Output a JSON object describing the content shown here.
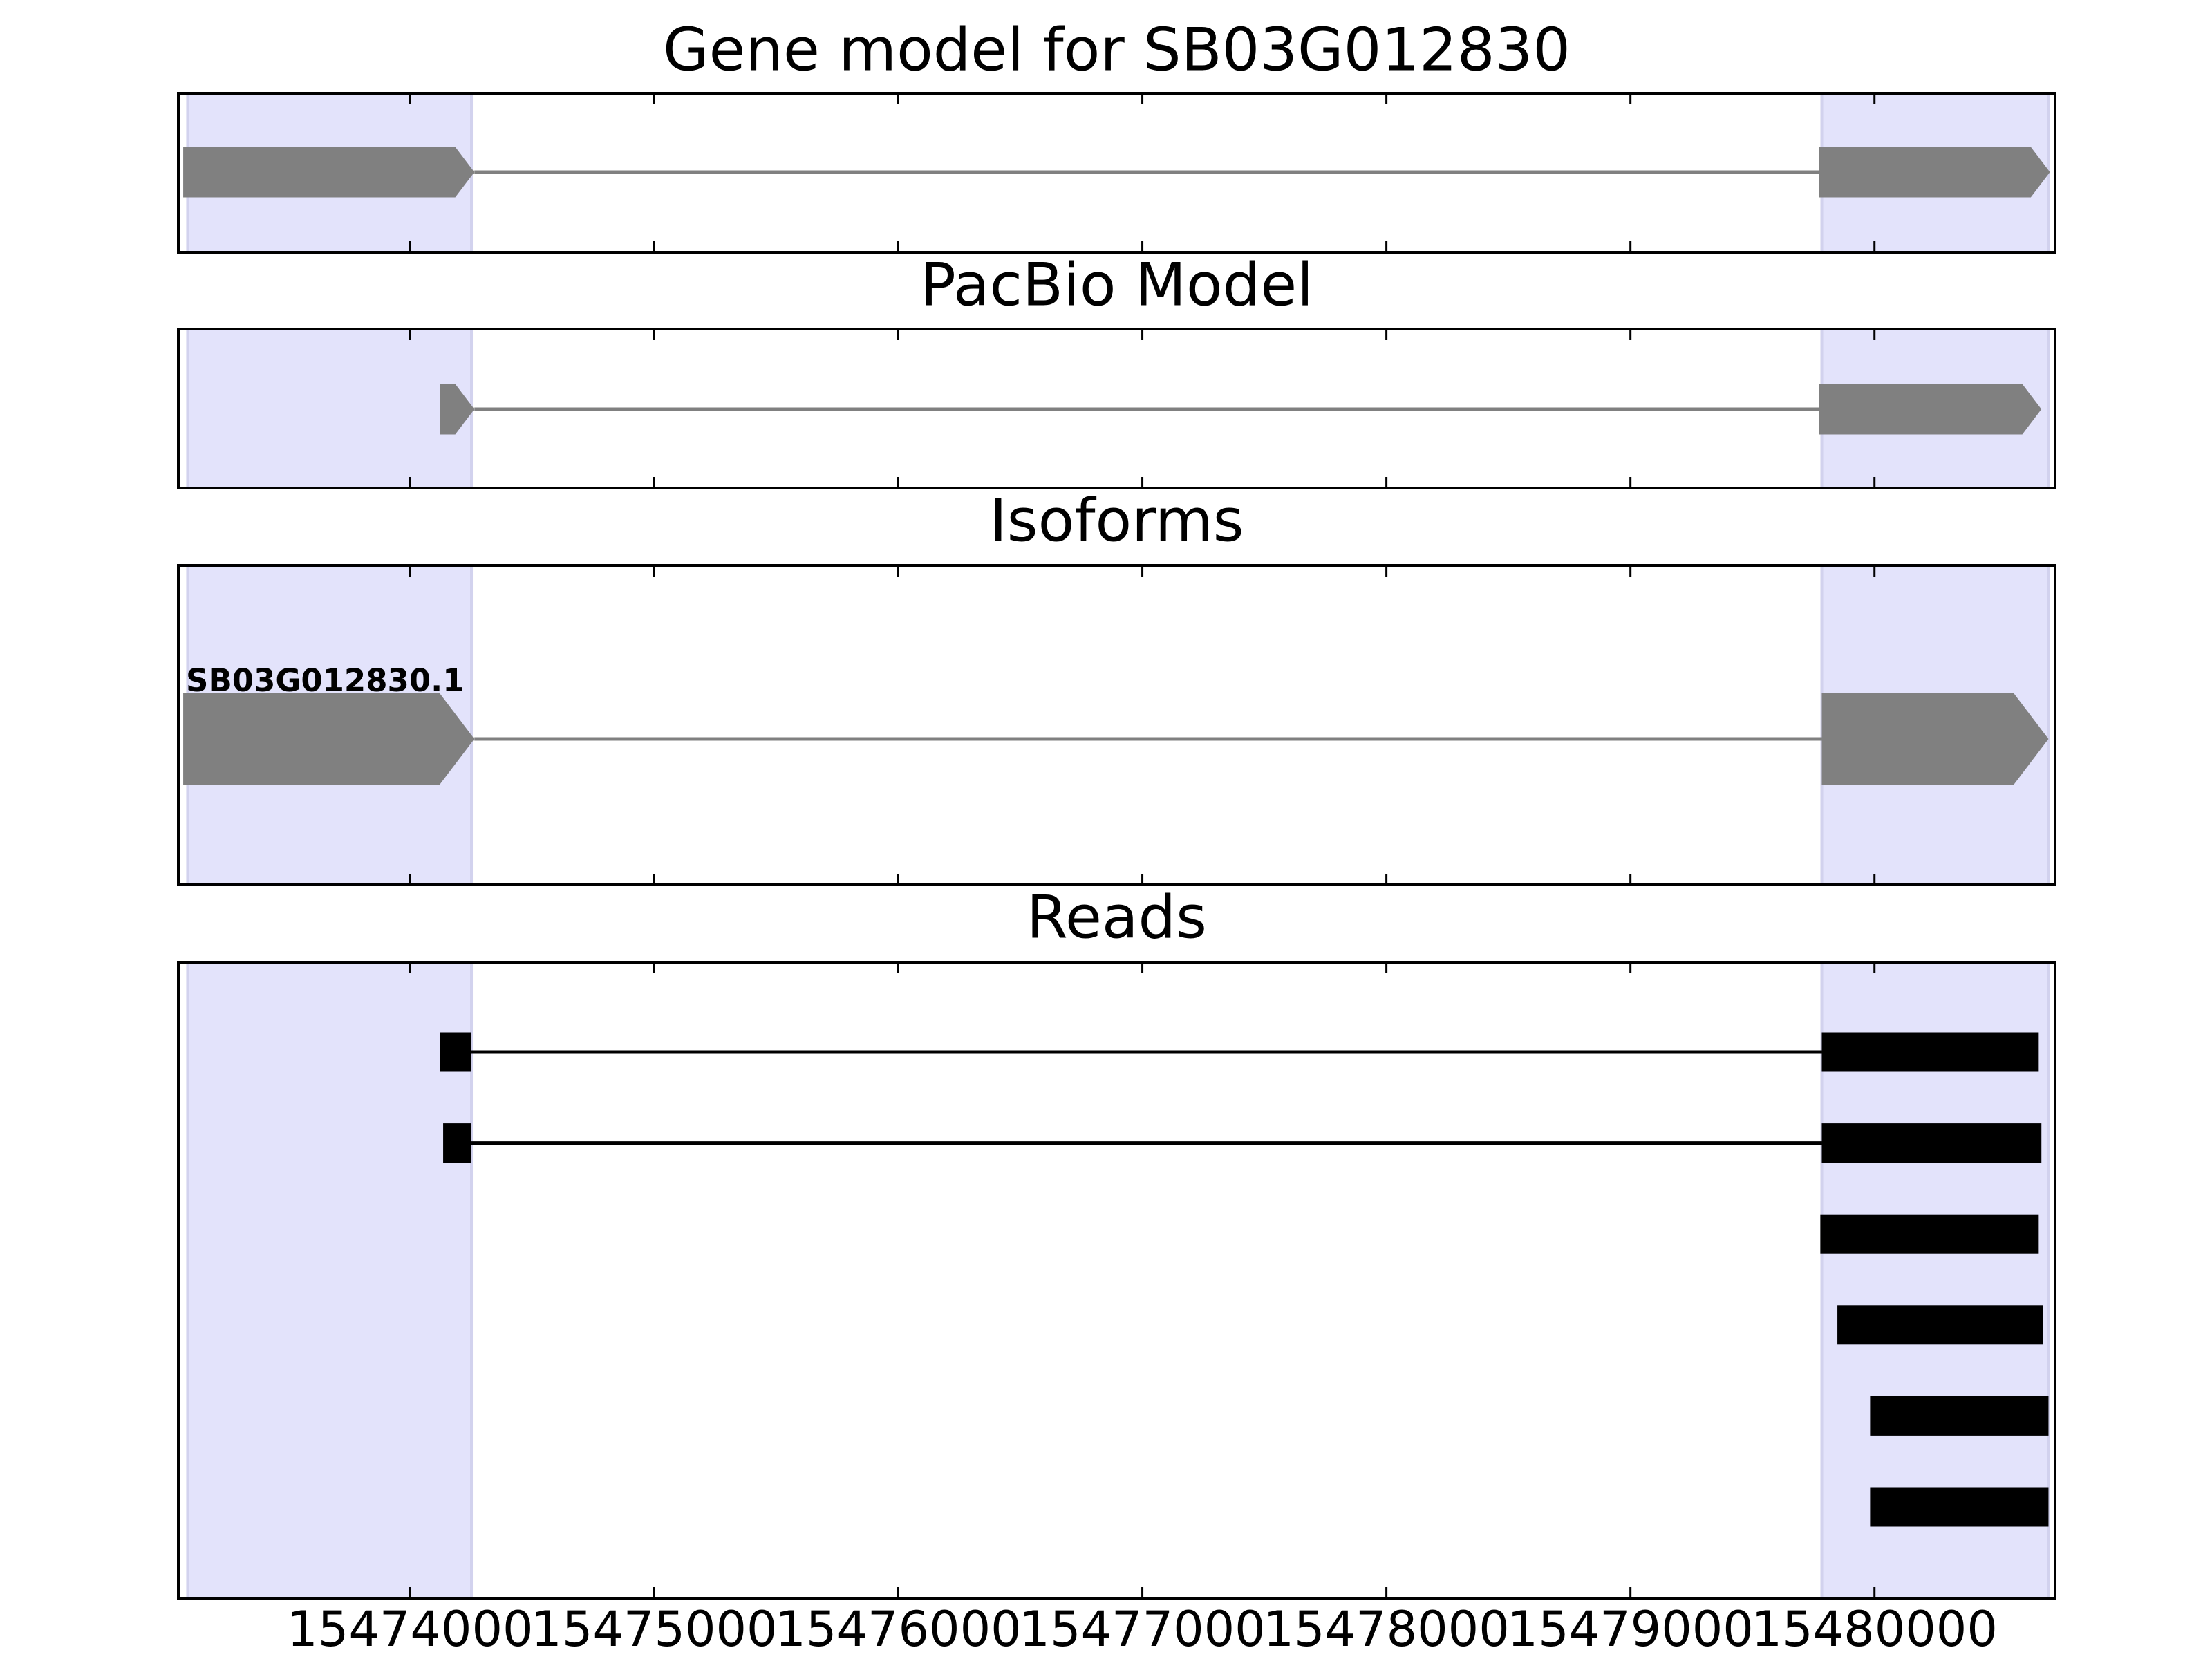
{
  "chart_data": [
    {
      "type": "gene-model",
      "title": "Gene model for SB03G012830",
      "xlim": [
        15473050,
        15480740
      ],
      "highlights": [
        [
          15473088,
          15474251
        ],
        [
          15479784,
          15480713
        ]
      ],
      "color": "#808080",
      "transcripts": [
        {
          "exons": [
            [
              15473070,
              15474263
            ],
            [
              15479772,
              15480719
            ]
          ]
        }
      ]
    },
    {
      "type": "gene-model",
      "title": "PacBio Model",
      "xlim": [
        15473050,
        15480740
      ],
      "highlights": [
        [
          15473088,
          15474251
        ],
        [
          15479784,
          15480713
        ]
      ],
      "color": "#808080",
      "transcripts": [
        {
          "exons": [
            [
              15474123,
              15474263
            ],
            [
              15479772,
              15480684
            ]
          ]
        }
      ]
    },
    {
      "type": "gene-model",
      "title": "Isoforms",
      "xlim": [
        15473050,
        15480740
      ],
      "highlights": [
        [
          15473088,
          15474251
        ],
        [
          15479784,
          15480713
        ]
      ],
      "color": "#808080",
      "transcripts": [
        {
          "name": "SB03G012830.1",
          "exons": [
            [
              15473070,
              15474263
            ],
            [
              15479784,
              15480713
            ]
          ]
        }
      ]
    },
    {
      "type": "reads",
      "title": "Reads",
      "xlim": [
        15473050,
        15480740
      ],
      "highlights": [
        [
          15473088,
          15474251
        ],
        [
          15479784,
          15480713
        ]
      ],
      "color": "#000000",
      "xticks": [
        15474000,
        15475000,
        15476000,
        15477000,
        15478000,
        15479000,
        15480000
      ],
      "transcripts": [
        {
          "exons": [
            [
              15474123,
              15474251
            ],
            [
              15479784,
              15480673
            ]
          ]
        },
        {
          "exons": [
            [
              15474135,
              15474251
            ],
            [
              15479784,
              15480684
            ]
          ]
        },
        {
          "exons": [
            [
              15479778,
              15480673
            ]
          ]
        },
        {
          "exons": [
            [
              15479848,
              15480690
            ]
          ]
        },
        {
          "exons": [
            [
              15479982,
              15480713
            ]
          ]
        },
        {
          "exons": [
            [
              15479982,
              15480713
            ]
          ]
        }
      ]
    }
  ]
}
